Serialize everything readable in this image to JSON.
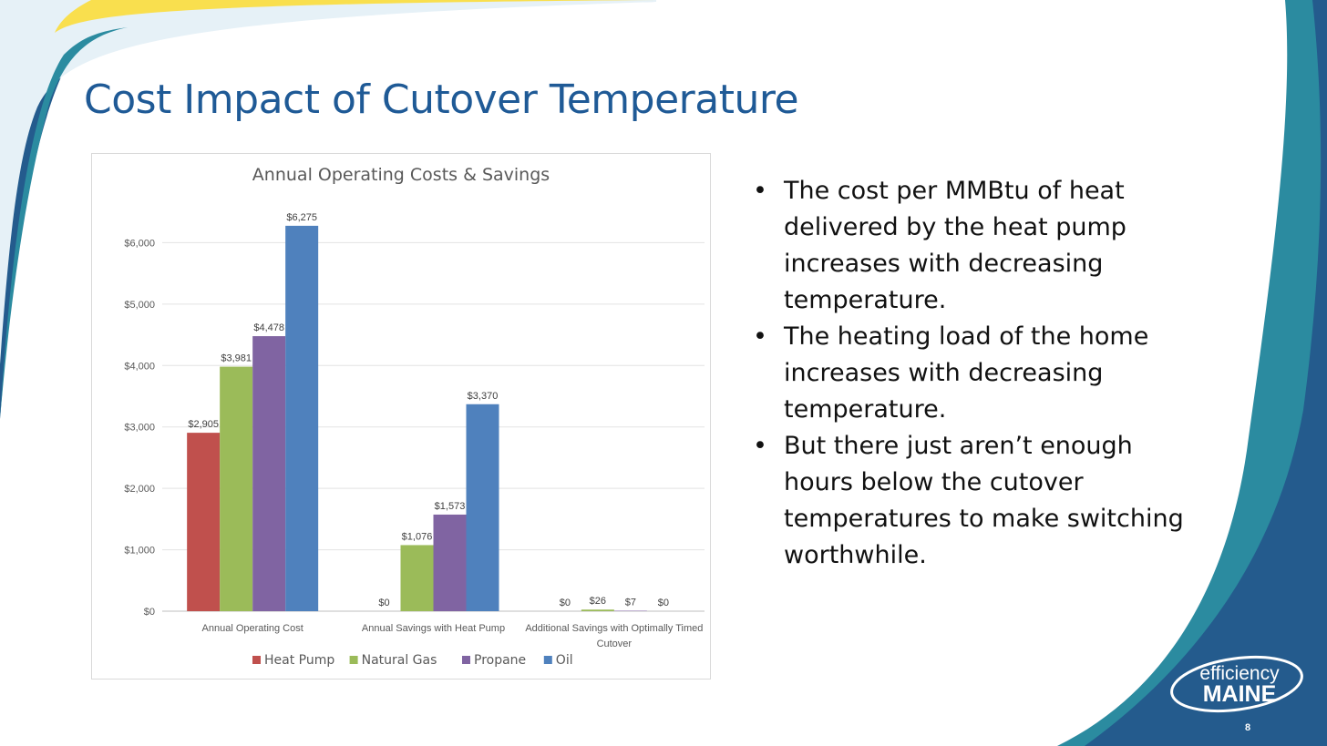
{
  "slide": {
    "title": "Cost Impact of Cutover Temperature",
    "number": "8"
  },
  "bullets": [
    "The cost per MMBtu of heat delivered by the heat pump increases with decreasing temperature.",
    "The heating load of the home increases with decreasing temperature.",
    "But there just aren’t enough hours below the cutover temperatures to make switching worthwhile."
  ],
  "logo": {
    "top": "efficiency",
    "bottom": "MAINE"
  },
  "colors": {
    "title": "#1f5a96",
    "navy": "#245b8d",
    "teal": "#2b8ba0",
    "yellow": "#f9df4e"
  },
  "chart_data": {
    "type": "bar",
    "title": "Annual Operating Costs & Savings",
    "categories": [
      "Annual Operating Cost",
      "Annual Savings with Heat Pump",
      "Additional Savings with Optimally Timed Cutover"
    ],
    "series": [
      {
        "name": "Heat Pump",
        "color": "#c0504d",
        "values": [
          2905,
          0,
          0
        ],
        "labels": [
          "$2,905",
          "$0",
          "$0"
        ]
      },
      {
        "name": "Natural Gas",
        "color": "#9bbb59",
        "values": [
          3981,
          1076,
          26
        ],
        "labels": [
          "$3,981",
          "$1,076",
          "$26"
        ]
      },
      {
        "name": "Propane",
        "color": "#8064a2",
        "values": [
          4478,
          1573,
          7
        ],
        "labels": [
          "$4,478",
          "$1,573",
          "$7"
        ]
      },
      {
        "name": "Oil",
        "color": "#4f81bd",
        "values": [
          6275,
          3370,
          0
        ],
        "labels": [
          "$6,275",
          "$3,370",
          "$0"
        ]
      }
    ],
    "label_mask": [
      [
        true,
        true,
        true,
        true
      ],
      [
        true,
        true,
        true,
        true
      ],
      [
        true,
        true,
        true,
        true
      ]
    ],
    "yticks": [
      "$0",
      "$1,000",
      "$2,000",
      "$3,000",
      "$4,000",
      "$5,000",
      "$6,000"
    ],
    "ylim": [
      0,
      7000
    ],
    "grid": true,
    "legend": "bottom"
  }
}
